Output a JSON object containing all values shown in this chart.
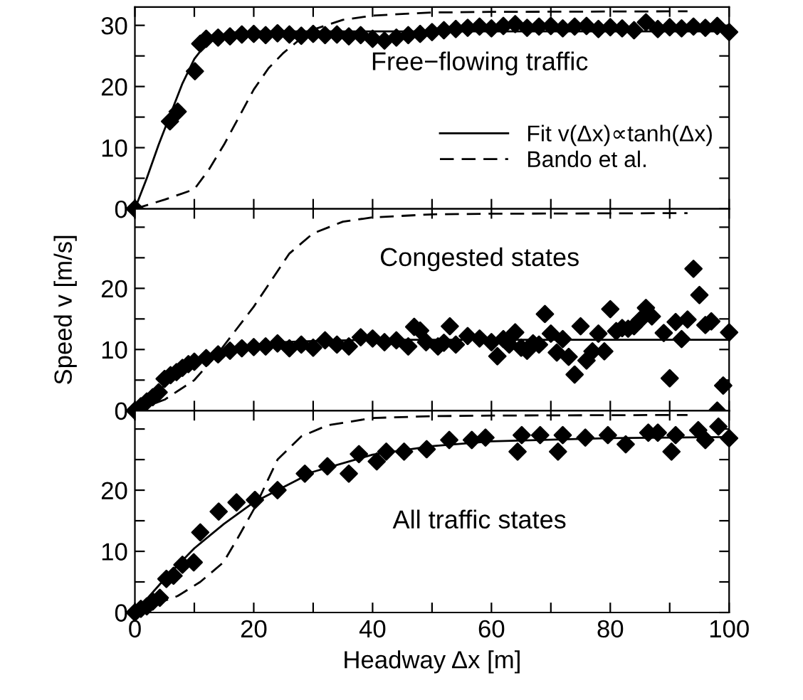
{
  "chart_data": [
    {
      "type": "scatter",
      "annotations": [
        "Free−flowing traffic"
      ],
      "xlim": [
        0,
        100
      ],
      "ylim": [
        0,
        33
      ],
      "xticks": [
        0,
        {
          "value": 10,
          "label": null
        },
        20,
        {
          "value": 30,
          "label": null
        },
        40,
        {
          "value": 50,
          "label": null
        },
        60,
        {
          "value": 70,
          "label": null
        },
        80,
        {
          "value": 90,
          "label": null
        },
        100
      ],
      "yticks": [
        0,
        {
          "value": 5,
          "label": null
        },
        10,
        {
          "value": 15,
          "label": null
        },
        20,
        {
          "value": 25,
          "label": null
        },
        30
      ],
      "tick_labels": "y",
      "grid": false,
      "legend": "right",
      "series": [
        {
          "marker": "diamond",
          "color": "#000000",
          "x": [
            0,
            5.9,
            7.2,
            10.1,
            11,
            12,
            14,
            16,
            18,
            20,
            22,
            24,
            26,
            28,
            30,
            32,
            34,
            36,
            38,
            40,
            42,
            44,
            46,
            48,
            50,
            52,
            54,
            56,
            58,
            60,
            62,
            64,
            66,
            68,
            70,
            72,
            74,
            76,
            78,
            80,
            82,
            84,
            86,
            88,
            90,
            92,
            94,
            96,
            98,
            100
          ],
          "values": [
            0,
            14.3,
            15.9,
            22.5,
            27,
            27.8,
            28,
            28.2,
            28.5,
            28.6,
            28.4,
            28.7,
            28.5,
            28.3,
            28.6,
            28.4,
            28.5,
            28.2,
            28.4,
            27.8,
            27.5,
            28,
            28.4,
            28.6,
            28.9,
            29.2,
            29.4,
            29.6,
            29.8,
            29.5,
            29.9,
            30.2,
            29.6,
            29.8,
            29.9,
            29.5,
            29.8,
            29.9,
            29.4,
            29.7,
            29.5,
            29.2,
            30.5,
            29.4,
            29.7,
            29.5,
            29.8,
            29.6,
            29.9,
            28.9
          ]
        },
        {
          "type": "line",
          "name": "Fit v(Δx)∝tanh(Δx)",
          "color": "#000000",
          "line_style": "solid",
          "x": [
            0,
            2,
            4,
            6,
            8,
            10,
            12,
            14,
            16,
            20,
            30,
            100
          ],
          "values": [
            0,
            5,
            10.5,
            15.5,
            20.5,
            24.5,
            27,
            28.3,
            28.8,
            29,
            29,
            29
          ]
        },
        {
          "type": "line",
          "name": "Bando et al.",
          "color": "#000000",
          "line_style": "dashed",
          "x": [
            0,
            5,
            10,
            12.5,
            15,
            17.5,
            20,
            22.5,
            25,
            27.5,
            30,
            35,
            40,
            50,
            60,
            93
          ],
          "values": [
            0,
            1.5,
            3.2,
            6.5,
            10.5,
            15,
            19.5,
            23,
            25.5,
            27.5,
            29.3,
            30.9,
            31.6,
            32.1,
            32.2,
            32.3
          ]
        }
      ]
    },
    {
      "type": "scatter",
      "annotations": [
        "Congested states"
      ],
      "ylabel": "Speed v [m/s]",
      "xlim": [
        0,
        100
      ],
      "ylim": [
        0,
        33
      ],
      "xticks": [
        0,
        {
          "value": 10,
          "label": null
        },
        20,
        {
          "value": 30,
          "label": null
        },
        40,
        {
          "value": 50,
          "label": null
        },
        60,
        {
          "value": 70,
          "label": null
        },
        80,
        {
          "value": 90,
          "label": null
        },
        100
      ],
      "yticks": [
        0,
        {
          "value": 5,
          "label": null
        },
        10,
        {
          "value": 15,
          "label": null
        },
        20,
        {
          "value": 25,
          "label": null
        },
        {
          "value": 30,
          "label": null
        }
      ],
      "tick_labels": "y",
      "grid": false,
      "series": [
        {
          "marker": "diamond",
          "color": "#000000",
          "x": [
            0,
            1,
            2,
            3,
            4,
            5,
            6,
            7,
            8,
            9,
            10,
            12,
            14,
            16,
            18,
            20,
            22,
            24,
            26,
            28,
            30,
            32,
            34,
            36,
            38,
            40,
            42,
            44,
            46,
            47,
            48,
            49,
            51,
            52,
            53,
            54,
            56,
            58,
            60,
            61,
            62,
            63,
            64,
            65,
            66,
            67,
            68,
            69,
            70,
            71,
            72,
            73,
            74,
            75,
            76,
            77,
            78,
            79,
            80,
            81,
            82,
            83,
            84,
            85,
            86,
            87,
            89,
            90,
            91,
            92,
            93,
            94,
            95,
            96,
            97,
            98,
            99,
            100
          ],
          "values": [
            0,
            0.7,
            1.5,
            2.2,
            3,
            5.2,
            5.8,
            6.3,
            7,
            7.6,
            8,
            8.6,
            9.2,
            9.8,
            10.2,
            10.4,
            10.5,
            11,
            10.2,
            10.8,
            10.3,
            11.5,
            10.8,
            10.5,
            12,
            11.8,
            11.2,
            11.5,
            10.5,
            13.7,
            13.1,
            11.2,
            10.5,
            11.1,
            13.8,
            10.8,
            12.2,
            11.8,
            11.2,
            8.9,
            11.7,
            10.8,
            12.8,
            10.3,
            9.8,
            11,
            10.8,
            15.8,
            12.6,
            9.5,
            11.7,
            8.8,
            5.9,
            13.8,
            8.2,
            9.7,
            12.6,
            9.7,
            16.6,
            13,
            13.5,
            13.4,
            13.8,
            14.8,
            16.8,
            15.4,
            12.7,
            5.3,
            14.5,
            11.7,
            14.9,
            23.2,
            18.9,
            14,
            14.6,
            0,
            4.1,
            12.8
          ]
        },
        {
          "type": "line",
          "color": "#000000",
          "line_style": "solid",
          "x": [
            0,
            3,
            6,
            9,
            12,
            15,
            20,
            25,
            30,
            40,
            100
          ],
          "values": [
            0,
            2.5,
            5,
            7,
            8.6,
            9.7,
            10.7,
            11.2,
            11.4,
            11.6,
            11.6
          ]
        },
        {
          "type": "line",
          "color": "#000000",
          "line_style": "dashed",
          "x": [
            0,
            5,
            10,
            14,
            20,
            26,
            30,
            35,
            40,
            50,
            60,
            93
          ],
          "values": [
            0,
            1.8,
            5,
            9.4,
            17,
            25.7,
            29,
            30.9,
            31.6,
            32.1,
            32.2,
            32.3
          ]
        }
      ]
    },
    {
      "type": "scatter",
      "annotations": [
        "All traffic states"
      ],
      "xlabel": "Headway Δx [m]",
      "xlim": [
        0,
        100
      ],
      "ylim": [
        0,
        33
      ],
      "xticks": [
        0,
        {
          "value": 10,
          "label": null
        },
        20,
        {
          "value": 30,
          "label": null
        },
        40,
        {
          "value": 50,
          "label": null
        },
        60,
        {
          "value": 70,
          "label": null
        },
        80,
        {
          "value": 90,
          "label": null
        },
        100
      ],
      "yticks": [
        0,
        {
          "value": 5,
          "label": null
        },
        10,
        {
          "value": 15,
          "label": null
        },
        20,
        {
          "value": 25,
          "label": null
        },
        {
          "value": 30,
          "label": null
        }
      ],
      "grid": false,
      "series": [
        {
          "marker": "diamond",
          "color": "#000000",
          "x": [
            0,
            1,
            2,
            3,
            4.2,
            5.3,
            6.5,
            8,
            9.9,
            11,
            14.1,
            17.1,
            20.2,
            24,
            28.6,
            32.4,
            36,
            37.7,
            40.7,
            42.3,
            45.3,
            49.1,
            52.9,
            56.7,
            59,
            64.4,
            65.1,
            68.2,
            71.2,
            72,
            75.8,
            79.6,
            82.6,
            86.4,
            88,
            90.3,
            91,
            94.8,
            96,
            98.2,
            100
          ],
          "values": [
            0,
            0.6,
            1,
            1.8,
            2.4,
            5.5,
            6,
            7.8,
            8.2,
            13.1,
            16.5,
            18,
            18.4,
            20,
            22.7,
            23.9,
            22.7,
            25.9,
            24.7,
            26.3,
            26.3,
            26.7,
            28.2,
            28.2,
            28.6,
            26.3,
            29,
            29,
            26.3,
            29,
            28.6,
            29,
            27.5,
            29.4,
            29.4,
            26.3,
            29,
            29.8,
            28.2,
            30.4,
            28.5
          ]
        },
        {
          "type": "line",
          "color": "#000000",
          "line_style": "solid",
          "x": [
            0,
            5,
            10,
            15,
            20,
            30,
            40,
            50,
            60,
            80,
            100
          ],
          "values": [
            0,
            5.5,
            10.5,
            14.5,
            18,
            23,
            25.8,
            27.2,
            28,
            28.5,
            28.7
          ]
        },
        {
          "type": "line",
          "color": "#000000",
          "line_style": "dashed",
          "x": [
            0,
            3,
            7.2,
            11,
            14.9,
            17.5,
            20.2,
            24,
            28,
            32.4,
            40,
            50,
            60,
            93
          ],
          "values": [
            0,
            1.2,
            2.7,
            5,
            8.2,
            12.5,
            17.2,
            25,
            28.8,
            30.6,
            31.8,
            32.1,
            32.2,
            32.3
          ]
        }
      ]
    }
  ]
}
